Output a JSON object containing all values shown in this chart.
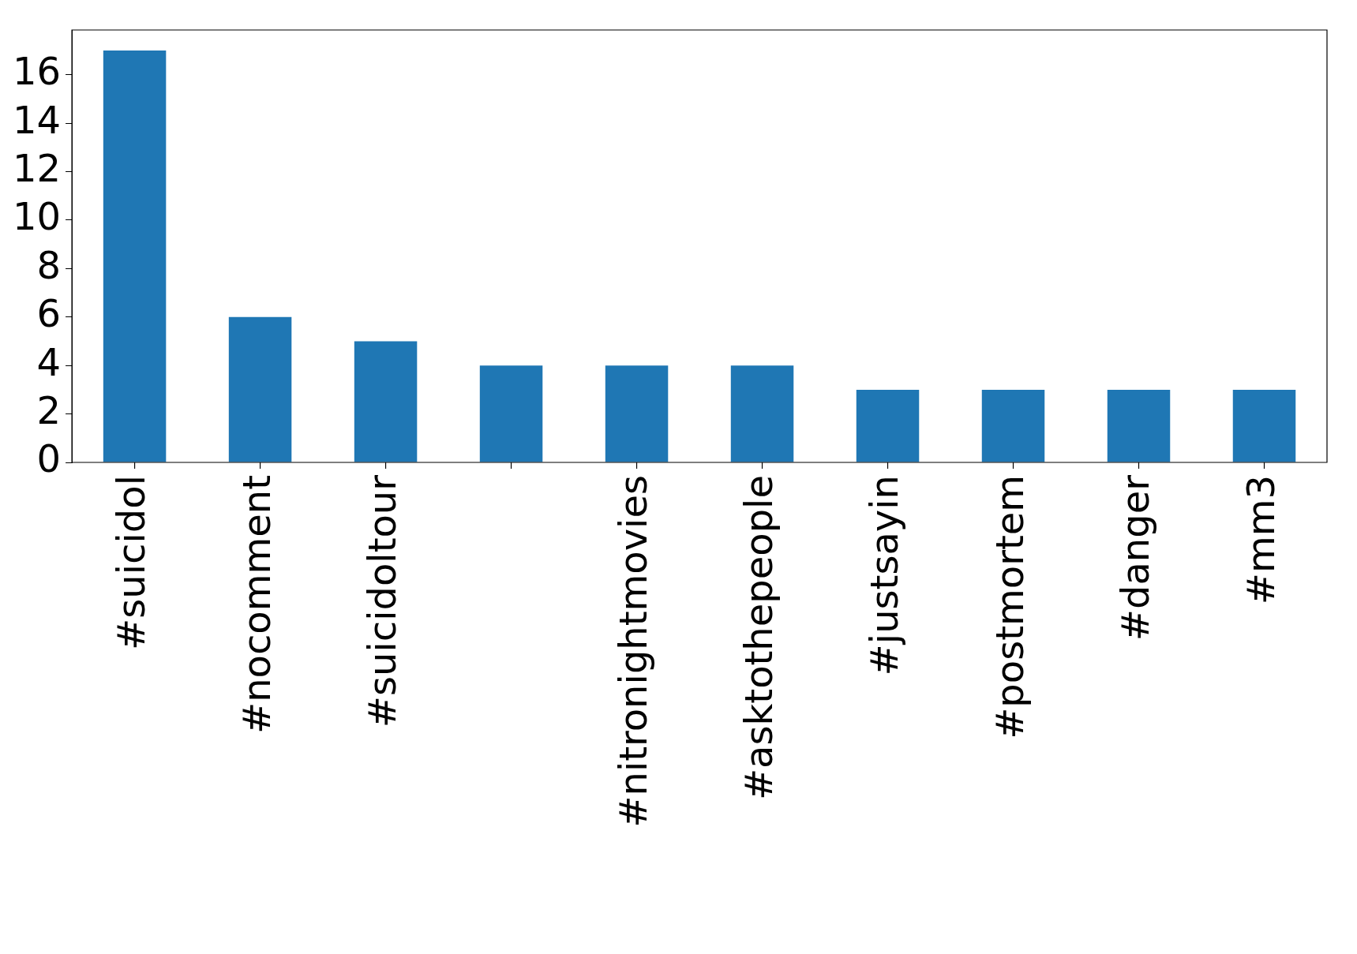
{
  "chart_data": {
    "type": "bar",
    "categories": [
      "#suicidol",
      "#nocomment",
      "#suicidoltour",
      null,
      "#nitronightmovies",
      "#asktothepeople",
      "#justsayin",
      "#postmortem",
      "#danger",
      "#mm3"
    ],
    "values": [
      17,
      6,
      5,
      4,
      4,
      4,
      3,
      3,
      3,
      3
    ],
    "color": "#1f77b4",
    "ylim": [
      0,
      17.85
    ],
    "yticks": [
      0,
      2,
      4,
      6,
      8,
      10,
      12,
      14,
      16
    ],
    "grid": false,
    "legend": false
  }
}
